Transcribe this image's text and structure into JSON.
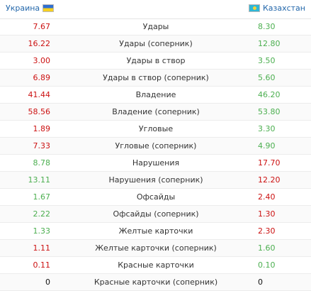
{
  "teams": {
    "home": {
      "name": "Украина",
      "flag_icon": "ukraine-flag-icon"
    },
    "away": {
      "name": "Казахстан",
      "flag_icon": "kazakhstan-flag-icon"
    }
  },
  "colors": {
    "better": "#4caf50",
    "worse": "#cc1111",
    "equal": "#111111",
    "team_link": "#2266aa"
  },
  "stats": [
    {
      "label": "Удары",
      "home": "7.67",
      "away": "8.30",
      "home_color": "red",
      "away_color": "green"
    },
    {
      "label": "Удары (соперник)",
      "home": "16.22",
      "away": "12.80",
      "home_color": "red",
      "away_color": "green"
    },
    {
      "label": "Удары в створ",
      "home": "3.00",
      "away": "3.50",
      "home_color": "red",
      "away_color": "green"
    },
    {
      "label": "Удары в створ (соперник)",
      "home": "6.89",
      "away": "5.60",
      "home_color": "red",
      "away_color": "green"
    },
    {
      "label": "Владение",
      "home": "41.44",
      "away": "46.20",
      "home_color": "red",
      "away_color": "green"
    },
    {
      "label": "Владение (соперник)",
      "home": "58.56",
      "away": "53.80",
      "home_color": "red",
      "away_color": "green"
    },
    {
      "label": "Угловые",
      "home": "1.89",
      "away": "3.30",
      "home_color": "red",
      "away_color": "green"
    },
    {
      "label": "Угловые (соперник)",
      "home": "7.33",
      "away": "4.90",
      "home_color": "red",
      "away_color": "green"
    },
    {
      "label": "Нарушения",
      "home": "8.78",
      "away": "17.70",
      "home_color": "green",
      "away_color": "red"
    },
    {
      "label": "Нарушения (соперник)",
      "home": "13.11",
      "away": "12.20",
      "home_color": "green",
      "away_color": "red"
    },
    {
      "label": "Офсайды",
      "home": "1.67",
      "away": "2.40",
      "home_color": "green",
      "away_color": "red"
    },
    {
      "label": "Офсайды (соперник)",
      "home": "2.22",
      "away": "1.30",
      "home_color": "green",
      "away_color": "red"
    },
    {
      "label": "Желтые карточки",
      "home": "1.33",
      "away": "2.30",
      "home_color": "green",
      "away_color": "red"
    },
    {
      "label": "Желтые карточки (соперник)",
      "home": "1.11",
      "away": "1.60",
      "home_color": "red",
      "away_color": "green"
    },
    {
      "label": "Красные карточки",
      "home": "0.11",
      "away": "0.10",
      "home_color": "red",
      "away_color": "green"
    },
    {
      "label": "Красные карточки (соперник)",
      "home": "0",
      "away": "0",
      "home_color": "black",
      "away_color": "black"
    }
  ]
}
